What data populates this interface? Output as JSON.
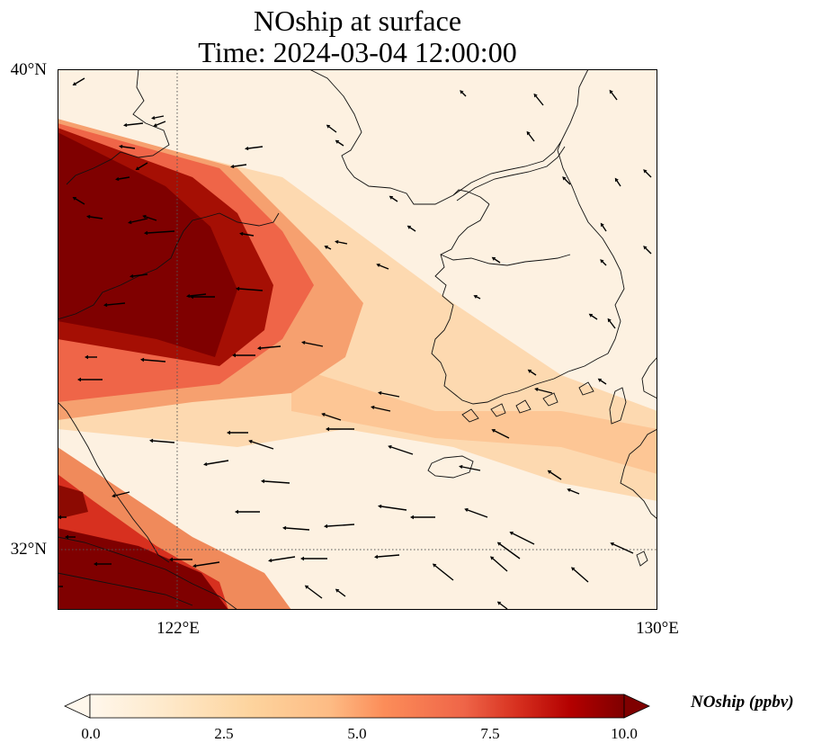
{
  "title": {
    "line1": "NOship at surface",
    "line2": "Time: 2024-03-04 12:00:00"
  },
  "axes": {
    "lat_ticks": [
      {
        "label": "40°N",
        "value": 40
      },
      {
        "label": "32°N",
        "value": 32
      }
    ],
    "lon_ticks": [
      {
        "label": "122°E",
        "value": 122
      },
      {
        "label": "130°E",
        "value": 130
      }
    ],
    "lat_range": [
      31,
      40
    ],
    "lon_range": [
      120,
      130
    ],
    "gridlines": "dotted"
  },
  "colorbar": {
    "label": "NOship (ppbv)",
    "ticks": [
      "0.0",
      "2.5",
      "5.0",
      "7.5",
      "10.0"
    ],
    "min": 0,
    "max": 10,
    "cmap": "OrRd",
    "extend": "both"
  },
  "colors": {
    "low": "#fff7ec",
    "high": "#7f0000"
  }
}
